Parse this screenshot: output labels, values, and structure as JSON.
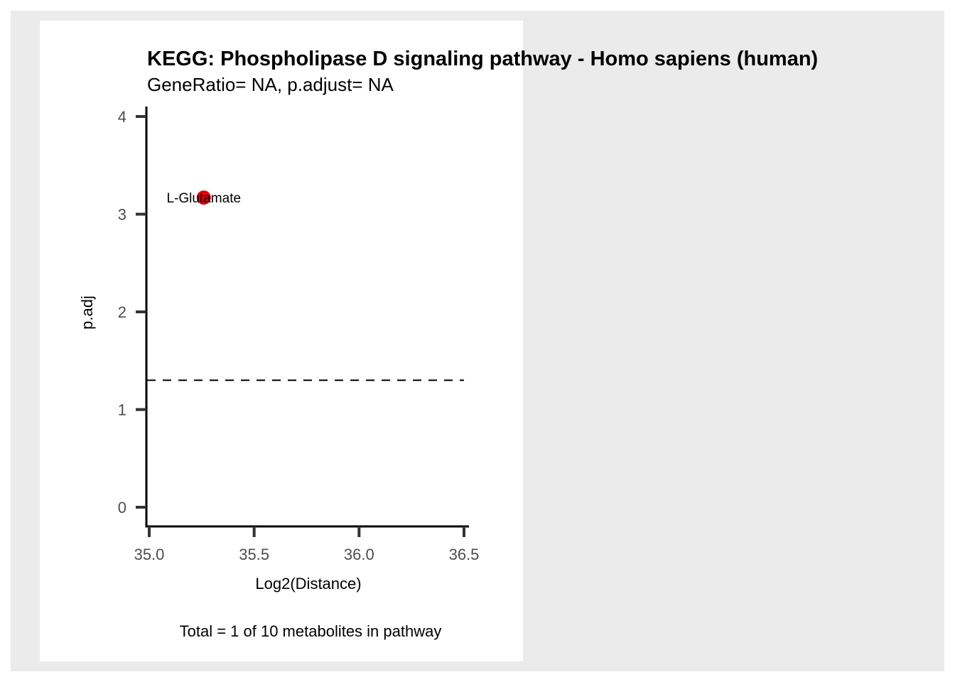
{
  "chart_data": {
    "type": "scatter",
    "title": "KEGG: Phospholipase D signaling pathway - Homo sapiens (human)",
    "subtitle": "GeneRatio= NA, p.adjust= NA",
    "xlabel": "Log2(Distance)",
    "ylabel": "p.adj",
    "caption": "Total = 1 of 10 metabolites in pathway",
    "xlim": [
      35.0,
      36.5
    ],
    "ylim": [
      0,
      4
    ],
    "x_ticks": [
      "35.0",
      "35.5",
      "36.0",
      "36.5"
    ],
    "y_ticks": [
      "0",
      "1",
      "2",
      "3",
      "4"
    ],
    "grid": false,
    "threshold_line": {
      "y": 1.3,
      "style": "dashed"
    },
    "points": [
      {
        "x": 35.26,
        "y": 3.17,
        "label": "L-Glutamate",
        "color": "#e3000f"
      }
    ]
  },
  "colors": {
    "background": "#ebebeb",
    "panel": "#ffffff",
    "axis": "#000000",
    "tick_text": "#4d4d4d",
    "point": "#e3000f"
  }
}
